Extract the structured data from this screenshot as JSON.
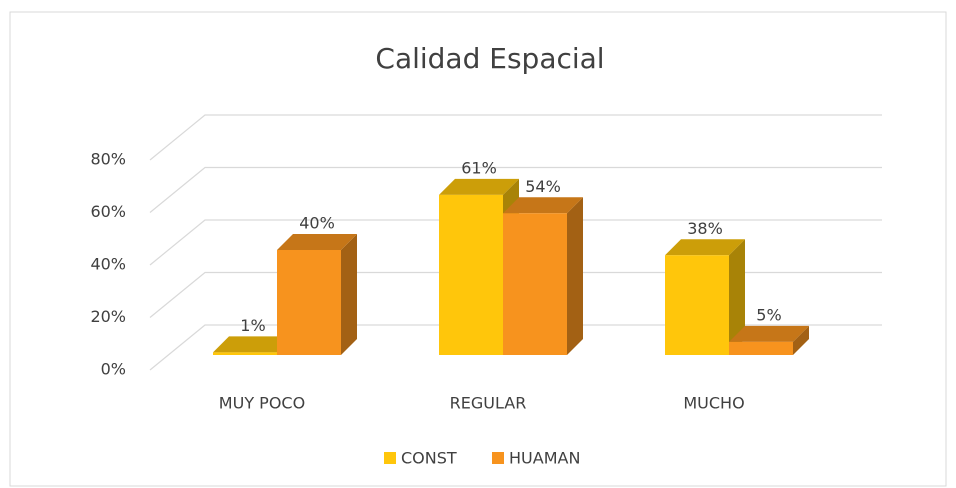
{
  "chart_data": {
    "type": "bar3d",
    "title": "Calidad Espacial",
    "categories": [
      "MUY POCO",
      "REGULAR",
      "MUCHO"
    ],
    "series": [
      {
        "name": "CONST",
        "color": "#ffc60b",
        "values": [
          1,
          61,
          38
        ],
        "value_labels": [
          "1%",
          "61%",
          "38%"
        ]
      },
      {
        "name": "HUAMAN",
        "color": "#f7931e",
        "values": [
          40,
          54,
          5
        ],
        "value_labels": [
          "40%",
          "54%",
          "5%"
        ]
      }
    ],
    "ylim": [
      0,
      80
    ],
    "yticks": [
      {
        "value": 0,
        "label": "0%"
      },
      {
        "value": 20,
        "label": "20%"
      },
      {
        "value": 40,
        "label": "40%"
      },
      {
        "value": 60,
        "label": "60%"
      },
      {
        "value": 80,
        "label": "80%"
      }
    ],
    "grid": true,
    "legend": "bottom"
  }
}
